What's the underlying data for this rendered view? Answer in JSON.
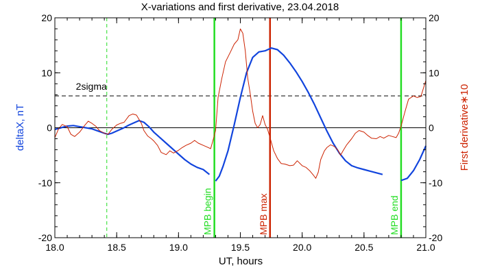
{
  "chart_data": {
    "type": "line",
    "title": "X-variations and first derivative, 23.04.2018",
    "xlabel": "UT, hours",
    "ylabel_left": "deltaX, nT",
    "ylabel_right": "First derivative∗10",
    "xlim": [
      18.0,
      21.0
    ],
    "ylim": [
      -20,
      20
    ],
    "x_ticks": [
      "18.0",
      "18.5",
      "19.0",
      "19.5",
      "20.0",
      "20.5",
      "21.0"
    ],
    "y_ticks": [
      "-20",
      "-10",
      "0",
      "10",
      "20"
    ],
    "colors": {
      "deltaX": "#1144dd",
      "derivative": "#cc2200",
      "mpb_boundary": "#22dd22",
      "mpb_max": "#cc2200",
      "threshold": "#000000",
      "zero": "#000000",
      "axis_left_label": "#1144dd",
      "axis_right_label": "#cc2200"
    },
    "threshold": {
      "label": "2sigma",
      "value": 5.8,
      "style": "dashed"
    },
    "zero_line": 0,
    "series": [
      {
        "key": "deltaX",
        "segments": [
          [
            [
              18.0,
              -0.3
            ],
            [
              18.05,
              0.0
            ],
            [
              18.1,
              0.3
            ],
            [
              18.15,
              0.4
            ],
            [
              18.2,
              0.2
            ],
            [
              18.25,
              0.0
            ],
            [
              18.3,
              -0.2
            ],
            [
              18.35,
              -0.6
            ],
            [
              18.4,
              -1.0
            ],
            [
              18.43,
              -1.2
            ],
            [
              18.46,
              -1.0
            ],
            [
              18.5,
              -0.6
            ],
            [
              18.55,
              -0.1
            ],
            [
              18.6,
              0.5
            ],
            [
              18.65,
              1.0
            ],
            [
              18.68,
              1.3
            ],
            [
              18.72,
              1.0
            ],
            [
              18.76,
              0.2
            ],
            [
              18.8,
              -0.8
            ],
            [
              18.85,
              -1.8
            ],
            [
              18.9,
              -2.8
            ],
            [
              18.95,
              -3.8
            ],
            [
              19.0,
              -4.8
            ],
            [
              19.05,
              -5.8
            ],
            [
              19.1,
              -6.6
            ],
            [
              19.15,
              -7.2
            ],
            [
              19.2,
              -7.6
            ],
            [
              19.25,
              -8.5
            ]
          ],
          [
            [
              19.3,
              -9.7
            ],
            [
              19.33,
              -8.8
            ],
            [
              19.36,
              -7.0
            ],
            [
              19.4,
              -4.2
            ],
            [
              19.45,
              0.5
            ],
            [
              19.5,
              5.5
            ],
            [
              19.55,
              10.0
            ],
            [
              19.6,
              12.8
            ],
            [
              19.65,
              13.8
            ],
            [
              19.7,
              14.0
            ],
            [
              19.75,
              14.5
            ],
            [
              19.8,
              14.2
            ],
            [
              19.85,
              13.2
            ],
            [
              19.9,
              11.8
            ],
            [
              19.95,
              10.2
            ],
            [
              20.0,
              8.4
            ],
            [
              20.05,
              6.4
            ],
            [
              20.1,
              4.2
            ],
            [
              20.15,
              1.8
            ],
            [
              20.2,
              -0.6
            ],
            [
              20.25,
              -2.8
            ],
            [
              20.3,
              -4.6
            ],
            [
              20.35,
              -6.0
            ],
            [
              20.4,
              -6.9
            ],
            [
              20.45,
              -7.3
            ],
            [
              20.5,
              -7.6
            ],
            [
              20.55,
              -7.9
            ],
            [
              20.6,
              -8.2
            ],
            [
              20.65,
              -8.5
            ]
          ],
          [
            [
              20.8,
              -9.6
            ],
            [
              20.85,
              -9.2
            ],
            [
              20.9,
              -7.8
            ],
            [
              20.95,
              -5.8
            ],
            [
              21.0,
              -3.3
            ]
          ]
        ]
      },
      {
        "key": "derivative",
        "segments": [
          [
            [
              18.0,
              -1.8
            ],
            [
              18.03,
              -0.2
            ],
            [
              18.06,
              0.6
            ],
            [
              18.1,
              0.2
            ],
            [
              18.13,
              -1.2
            ],
            [
              18.16,
              -1.6
            ],
            [
              18.2,
              -0.8
            ],
            [
              18.24,
              0.4
            ],
            [
              18.27,
              1.2
            ],
            [
              18.3,
              0.8
            ],
            [
              18.33,
              0.3
            ],
            [
              18.36,
              -0.5
            ],
            [
              18.4,
              -1.0
            ],
            [
              18.43,
              -1.2
            ],
            [
              18.46,
              -0.3
            ],
            [
              18.5,
              0.5
            ],
            [
              18.53,
              0.8
            ],
            [
              18.56,
              1.0
            ],
            [
              18.6,
              2.2
            ],
            [
              18.63,
              2.5
            ],
            [
              18.66,
              2.3
            ],
            [
              18.7,
              0.8
            ],
            [
              18.72,
              -0.5
            ],
            [
              18.75,
              -1.5
            ],
            [
              18.78,
              -2.0
            ],
            [
              18.8,
              -2.4
            ],
            [
              18.83,
              -3.2
            ],
            [
              18.86,
              -4.5
            ],
            [
              18.9,
              -4.9
            ],
            [
              18.93,
              -4.2
            ],
            [
              18.96,
              -4.6
            ],
            [
              19.0,
              -4.1
            ],
            [
              19.03,
              -3.6
            ],
            [
              19.06,
              -3.2
            ],
            [
              19.1,
              -2.8
            ],
            [
              19.13,
              -2.3
            ],
            [
              19.16,
              -2.8
            ],
            [
              19.2,
              -3.2
            ],
            [
              19.23,
              -3.5
            ],
            [
              19.26,
              -3.8
            ],
            [
              19.28,
              -2.2
            ],
            [
              19.3,
              -0.5
            ],
            [
              19.32,
              5.5
            ],
            [
              19.35,
              9.0
            ],
            [
              19.38,
              12.0
            ],
            [
              19.42,
              13.8
            ],
            [
              19.45,
              15.2
            ],
            [
              19.48,
              16.0
            ],
            [
              19.5,
              18.0
            ],
            [
              19.52,
              17.2
            ],
            [
              19.54,
              14.0
            ],
            [
              19.56,
              9.0
            ],
            [
              19.58,
              6.2
            ],
            [
              19.6,
              3.0
            ],
            [
              19.62,
              0.8
            ],
            [
              19.64,
              0.0
            ],
            [
              19.66,
              0.6
            ],
            [
              19.68,
              2.2
            ],
            [
              19.7,
              0.6
            ],
            [
              19.72,
              -0.3
            ],
            [
              19.74,
              -1.8
            ],
            [
              19.77,
              -4.2
            ],
            [
              19.8,
              -5.6
            ],
            [
              19.83,
              -6.5
            ],
            [
              19.86,
              -6.6
            ],
            [
              19.9,
              -6.9
            ],
            [
              19.93,
              -6.8
            ],
            [
              19.96,
              -6.0
            ],
            [
              20.0,
              -6.9
            ],
            [
              20.03,
              -7.2
            ],
            [
              20.06,
              -7.8
            ],
            [
              20.09,
              -8.6
            ],
            [
              20.11,
              -9.2
            ],
            [
              20.13,
              -8.1
            ],
            [
              20.15,
              -5.8
            ],
            [
              20.18,
              -4.2
            ],
            [
              20.2,
              -3.6
            ],
            [
              20.23,
              -3.1
            ],
            [
              20.26,
              -3.4
            ],
            [
              20.29,
              -4.1
            ],
            [
              20.31,
              -5.0
            ],
            [
              20.33,
              -4.2
            ],
            [
              20.36,
              -3.1
            ],
            [
              20.4,
              -2.0
            ],
            [
              20.43,
              -1.0
            ],
            [
              20.46,
              -0.5
            ],
            [
              20.5,
              -0.8
            ],
            [
              20.53,
              -1.4
            ],
            [
              20.56,
              -1.9
            ],
            [
              20.6,
              -2.0
            ],
            [
              20.63,
              -1.6
            ],
            [
              20.66,
              -1.9
            ],
            [
              20.7,
              -1.4
            ],
            [
              20.73,
              -1.6
            ],
            [
              20.76,
              -1.8
            ],
            [
              20.78,
              -1.0
            ],
            [
              20.8,
              0.3
            ],
            [
              20.83,
              2.8
            ],
            [
              20.86,
              5.2
            ],
            [
              20.9,
              5.8
            ],
            [
              20.93,
              5.5
            ],
            [
              20.96,
              5.7
            ],
            [
              21.0,
              8.6
            ]
          ]
        ]
      }
    ],
    "vlines": [
      {
        "x": 18.42,
        "color_key": "mpb_boundary",
        "style": "dashed",
        "label": ""
      },
      {
        "x": 19.29,
        "color_key": "mpb_boundary",
        "style": "solid",
        "label": "MPB begin"
      },
      {
        "x": 19.74,
        "color_key": "mpb_max",
        "style": "solid",
        "label": "MPB max"
      },
      {
        "x": 20.8,
        "color_key": "mpb_boundary",
        "style": "solid",
        "label": "MPB end"
      }
    ],
    "grid": false,
    "legend": "none"
  }
}
